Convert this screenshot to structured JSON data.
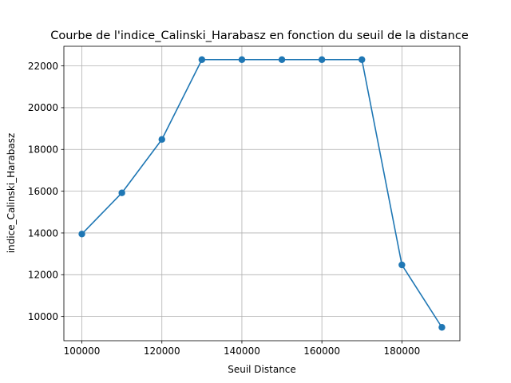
{
  "chart_data": {
    "type": "line",
    "title": "Courbe de l'indice_Calinski_Harabasz en fonction du seuil de la distance",
    "xlabel": "Seuil Distance",
    "ylabel": "indice_Calinski_Harabasz",
    "x": [
      100000,
      110000,
      120000,
      130000,
      140000,
      150000,
      160000,
      170000,
      180000,
      190000
    ],
    "series": [
      {
        "values": [
          13950,
          15920,
          18480,
          22300,
          22300,
          22300,
          22300,
          22300,
          12470,
          9480
        ],
        "color": "#1f77b4",
        "marker": "circle"
      }
    ],
    "xlim": [
      95500,
      194500
    ],
    "ylim": [
      8840,
      22940
    ],
    "xticks": [
      100000,
      120000,
      140000,
      160000,
      180000
    ],
    "yticks": [
      10000,
      12000,
      14000,
      16000,
      18000,
      20000,
      22000
    ],
    "xtick_labels": [
      "100000",
      "120000",
      "140000",
      "160000",
      "180000"
    ],
    "ytick_labels": [
      "10000",
      "12000",
      "14000",
      "16000",
      "18000",
      "20000",
      "22000"
    ],
    "grid": true,
    "legend": false
  }
}
